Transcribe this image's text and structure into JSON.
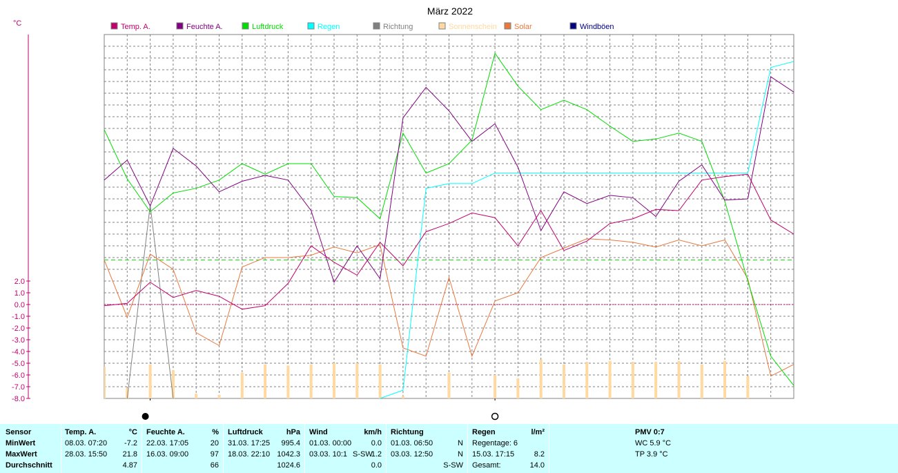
{
  "chart_data": {
    "type": "line",
    "title": "März 2022",
    "unit_label": "°C",
    "ylim": [
      -8,
      23
    ],
    "x": [
      1,
      2,
      3,
      4,
      5,
      6,
      7,
      8,
      9,
      10,
      11,
      12,
      13,
      14,
      15,
      16,
      17,
      18,
      19,
      20,
      21,
      22,
      23,
      24,
      25,
      26,
      27,
      28,
      29,
      30,
      31
    ],
    "y_tick_labels": [
      "2.0",
      "1.0",
      "0.0",
      "-1.0",
      "-2.0",
      "-3.0",
      "-4.0",
      "-5.0",
      "-6.0",
      "-7.0",
      "-8.0"
    ],
    "legend": [
      {
        "name": "Temp. A.",
        "color": "#c0006c"
      },
      {
        "name": "Feuchte A.",
        "color": "#800080"
      },
      {
        "name": "Luftdruck",
        "color": "#00dd00"
      },
      {
        "name": "Regen",
        "color": "#00ffff"
      },
      {
        "name": "Richtung",
        "color": "#808080"
      },
      {
        "name": "Sonnenschein",
        "color": "#ffd9a0"
      },
      {
        "name": "Solar",
        "color": "#e8783c"
      },
      {
        "name": "Windböen",
        "color": "#000080"
      }
    ],
    "series": [
      {
        "name": "Temp. A.",
        "color": "#c0006c",
        "values": [
          -0.1,
          0.1,
          1.9,
          0.6,
          1.2,
          0.7,
          -0.4,
          -0.1,
          1.8,
          5.0,
          3.6,
          2.5,
          5.3,
          3.3,
          6.2,
          6.9,
          7.8,
          7.4,
          5.0,
          8.0,
          4.6,
          5.4,
          6.9,
          7.3,
          8.1,
          8.0,
          10.6,
          10.9,
          11.1,
          7.2,
          6.0
        ]
      },
      {
        "name": "Feuchte A.",
        "color": "#800080",
        "values": [
          10.6,
          12.3,
          8.4,
          13.3,
          11.8,
          9.6,
          10.5,
          11.0,
          10.6,
          8.0,
          1.9,
          5.0,
          2.2,
          15.9,
          18.5,
          16.5,
          13.9,
          15.4,
          11.7,
          6.3,
          9.6,
          8.6,
          9.3,
          9.1,
          7.5,
          10.5,
          11.9,
          8.9,
          9.0,
          19.4,
          18.1
        ]
      },
      {
        "name": "Luftdruck",
        "color": "#00dd00",
        "values": [
          14.9,
          10.7,
          7.9,
          9.5,
          9.9,
          10.6,
          12.0,
          11.1,
          12.0,
          12.0,
          9.2,
          9.1,
          7.3,
          14.6,
          11.2,
          12.0,
          14.0,
          21.4,
          18.6,
          16.6,
          17.4,
          16.6,
          15.2,
          13.9,
          14.1,
          14.6,
          13.9,
          8.8,
          2.0,
          -4.4,
          -6.9
        ]
      },
      {
        "name": "Solar",
        "color": "#e8783c",
        "values": [
          3.8,
          -1.1,
          4.3,
          3.0,
          -2.4,
          -3.5,
          3.2,
          4.0,
          4.0,
          4.2,
          4.9,
          4.4,
          5.1,
          -3.7,
          -4.4,
          2.3,
          -4.4,
          0.3,
          1.0,
          4.0,
          4.8,
          5.6,
          5.5,
          5.3,
          4.9,
          5.5,
          5.0,
          5.5,
          2.2,
          -6.1,
          -5.1
        ]
      },
      {
        "name": "Regen",
        "color": "#00ffff",
        "values": [
          null,
          null,
          null,
          null,
          null,
          null,
          null,
          null,
          null,
          null,
          null,
          null,
          -8.0,
          -7.3,
          9.9,
          10.3,
          10.3,
          11.2,
          11.2,
          11.2,
          11.2,
          11.2,
          11.2,
          11.2,
          11.2,
          11.2,
          11.2,
          11.2,
          11.2,
          20.2,
          20.7
        ]
      },
      {
        "name": "Richtung",
        "color": "#808080",
        "values": [
          null,
          -8.0,
          8.5,
          -8.0,
          null,
          null,
          null,
          null,
          null,
          null,
          null,
          null,
          null,
          null,
          null,
          null,
          null,
          null,
          null,
          null,
          null,
          null,
          null,
          null,
          null,
          null,
          null,
          null,
          null,
          null,
          null
        ]
      },
      {
        "name": "Sonnenschein",
        "type": "bar",
        "color": "#ffd9a0",
        "values": [
          -5.3,
          -7.1,
          -5.1,
          -5.6,
          -7.6,
          -7.7,
          -5.8,
          -5.1,
          -5.2,
          -5.1,
          -5.0,
          -5.0,
          -5.1,
          -7.8,
          -8.0,
          -5.8,
          -8.0,
          -6.0,
          -6.3,
          -4.7,
          -5.1,
          -4.9,
          -4.8,
          -4.9,
          -4.9,
          -4.8,
          -5.1,
          -4.8,
          -6.1,
          -8.0,
          -8.0
        ]
      }
    ],
    "reference_lines": [
      {
        "value": 0,
        "color": "#c0006c",
        "style": "dotted"
      },
      {
        "value": 3.8,
        "color": "#00dd00",
        "style": "dashed"
      }
    ],
    "moon_markers": [
      {
        "day": 3,
        "phase": "new"
      },
      {
        "day": 18,
        "phase": "full"
      }
    ],
    "grid": true,
    "legend_position": "top"
  },
  "stats": {
    "headers": {
      "sensor": "Sensor",
      "temp": {
        "label": "Temp. A.",
        "unit": "°C"
      },
      "hum": {
        "label": "Feuchte A.",
        "unit": "%"
      },
      "press": {
        "label": "Luftdruck",
        "unit": "hPa"
      },
      "wind": {
        "label": "Wind",
        "unit": "km/h"
      },
      "dir": {
        "label": "Richtung"
      },
      "rain": {
        "label": "Regen",
        "unit": "l/m²"
      },
      "pmv": "PMV 0:7"
    },
    "row_labels": {
      "min": "MinWert",
      "max": "MaxWert",
      "avg": "Durchschnitt"
    },
    "temp": {
      "min_time": "08.03.  07:20",
      "min_val": "-7.2",
      "max_time": "28.03.  15:50",
      "max_val": "21.8",
      "avg": "4.87"
    },
    "hum": {
      "min_time": "22.03.  17:05",
      "min_val": "20",
      "max_time": "16.03.  09:00",
      "max_val": "97",
      "avg": "66"
    },
    "press": {
      "min_time": "31.03.  17:25",
      "min_val": "995.4",
      "max_time": "18.03.  22:10",
      "max_val": "1042.3",
      "avg": "1024.6"
    },
    "wind": {
      "min_time": "01.03.  00:00",
      "min_val": "0.0",
      "max_time": "03.03.  10:1",
      "max_dir": "S-SW",
      "max_val": "1.2",
      "avg": "0.0"
    },
    "dir": {
      "min_time": "01.03.  06:50",
      "min_val": "N",
      "max_time": "03.03.  12:50",
      "max_val": "N",
      "avg": "S-SW"
    },
    "rain": {
      "days": "Regentage: 6",
      "max_time": "15.03.  17:15",
      "max_val": "8.2",
      "total_label": "Gesamt:",
      "total_val": "14.0"
    },
    "pmv": {
      "wc": "WC 5.9 °C",
      "tp": "TP 3.9 °C"
    }
  }
}
